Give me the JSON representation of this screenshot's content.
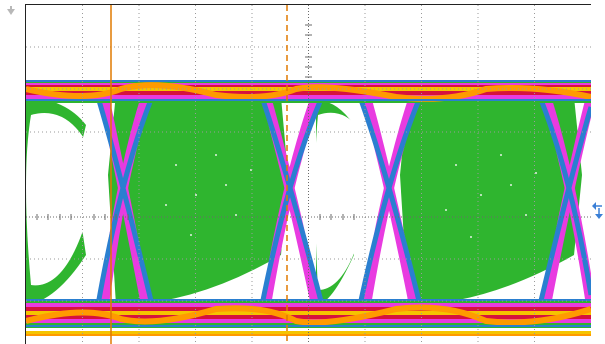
{
  "scope": {
    "display": {
      "graticule": {
        "divisions_x": 10,
        "divisions_y": 8,
        "minor_ticks_per_div": 5
      },
      "colors": {
        "background": "#ffffff",
        "grid": "#9a9a9a",
        "hit_low": "#2a7fd0",
        "hit_mid": "#2fb52f",
        "hit_high": "#e83be0",
        "hit_peak_red": "#d6123e",
        "hit_peak_yellow": "#f5c400",
        "hit_peak_orange": "#ff9a00",
        "cursor": "#e07a00"
      }
    },
    "markers": {
      "trigger_icon": "trigger-arrow-icon",
      "level_icon": "level-arrows-icon"
    }
  }
}
